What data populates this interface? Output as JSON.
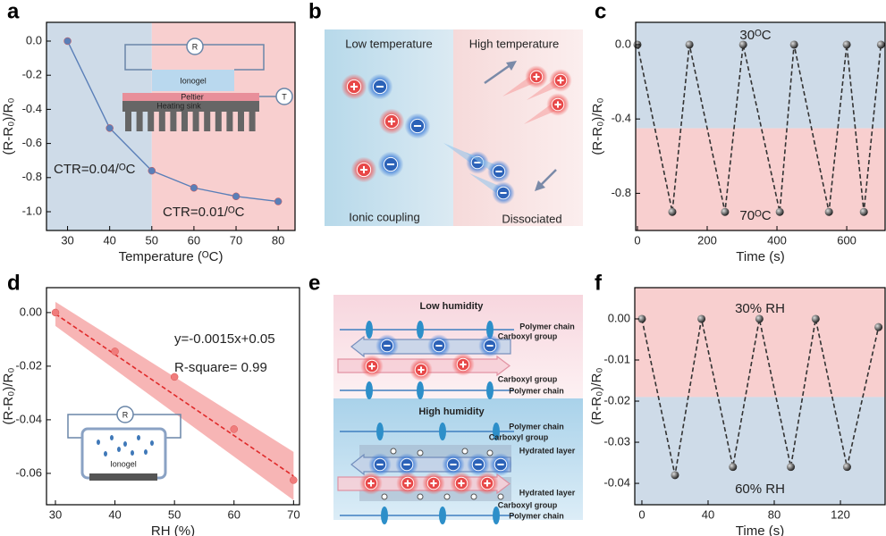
{
  "panel_labels": [
    "a",
    "b",
    "c",
    "d",
    "e",
    "f"
  ],
  "chart_data": [
    {
      "type": "line",
      "xlabel": "Temperature (ᴼC)",
      "ylabel": "(R-R₀)/R₀",
      "xlim": [
        25,
        84
      ],
      "ylim": [
        -1.11,
        0.11
      ],
      "xticks": [
        30,
        40,
        50,
        60,
        70,
        80
      ],
      "yticks": [
        {
          "value": 0,
          "label": "0.0"
        },
        -0.2,
        -0.4,
        -0.6,
        -0.8,
        {
          "value": -1,
          "label": "-1.0"
        }
      ],
      "regions": {
        "axis": "x",
        "split": 50,
        "colors": [
          "#cedbe8",
          "#f8cfcf"
        ]
      },
      "series": [
        {
          "color": "#5a7fb8",
          "line": "solid",
          "marker": "dot",
          "x": [
            30,
            40,
            50,
            60,
            70,
            80
          ],
          "values": [
            0,
            -0.51,
            -0.76,
            -0.86,
            -0.91,
            -0.94
          ]
        }
      ],
      "annotations": [
        "CTR=0.04/ᴼC",
        "CTR=0.01/ᴼC"
      ],
      "inset_labels": [
        "R",
        "Ionogel",
        "Peltier",
        "Heating sink",
        "T"
      ]
    },
    {
      "type": "line",
      "xlabel": "Time (s)",
      "ylabel": "(R-R₀)/R₀",
      "xlim": [
        -5,
        710
      ],
      "ylim": [
        -1.0,
        0.12
      ],
      "xticks": [
        0,
        200,
        400,
        600
      ],
      "yticks": [
        {
          "value": 0,
          "label": "0.0"
        },
        -0.4,
        -0.8
      ],
      "regions": {
        "axis": "y",
        "split": -0.45,
        "colors": [
          "#cedbe8",
          "#f8cfcf"
        ]
      },
      "series": [
        {
          "color": "#333333",
          "line": "dashed",
          "marker": "sphere",
          "x": [
            0,
            100,
            149,
            251,
            303,
            408,
            449,
            549,
            600,
            649,
            698
          ],
          "values": [
            0,
            -0.9,
            0,
            -0.9,
            0,
            -0.9,
            0,
            -0.9,
            0,
            -0.9,
            0
          ]
        }
      ],
      "annotations": [
        "30ᴼC",
        "70ᴼC"
      ],
      "annotation_colors": [
        "#2b5c9c",
        "#c42424"
      ]
    },
    {
      "type": "scatter",
      "xlabel": "RH (%)",
      "ylabel": "(R-R₀)/R₀",
      "xlim": [
        28.5,
        71
      ],
      "ylim": [
        -0.0717,
        0.0093
      ],
      "xticks": [
        30,
        40,
        50,
        60,
        70
      ],
      "yticks": [
        {
          "value": 0,
          "label": "0.00"
        },
        {
          "value": -0.02,
          "label": "-0.02"
        },
        {
          "value": -0.04,
          "label": "-0.04"
        },
        {
          "value": -0.06,
          "label": "-0.06"
        }
      ],
      "band": {
        "color": "#f5a3a3",
        "x": [
          30,
          70
        ],
        "upper": [
          0.004,
          -0.052
        ],
        "lower": [
          -0.005,
          -0.07
        ]
      },
      "series": [
        {
          "color": "#e02a2a",
          "line": "dashed",
          "x": [
            30,
            70
          ],
          "values": [
            -0.0005,
            -0.061
          ]
        },
        {
          "color": "#f07c7c",
          "marker": "dot",
          "x": [
            30,
            40,
            50,
            60,
            70
          ],
          "values": [
            0,
            -0.0145,
            -0.024,
            -0.0435,
            -0.0625
          ]
        }
      ],
      "annotations": [
        "y=-0.0015x+0.05",
        "R-square= 0.99"
      ],
      "inset_labels": [
        "R",
        "Ionogel"
      ]
    },
    {
      "type": "line",
      "xlabel": "Time (s)",
      "ylabel": "(R-R₀)/R₀",
      "xlim": [
        -4.3,
        147
      ],
      "ylim": [
        -0.0452,
        0.0076
      ],
      "xticks": [
        0,
        40,
        80,
        120
      ],
      "yticks": [
        {
          "value": 0,
          "label": "0.00"
        },
        {
          "value": -0.01,
          "label": "-0.01"
        },
        {
          "value": -0.02,
          "label": "-0.02"
        },
        {
          "value": -0.03,
          "label": "-0.03"
        },
        {
          "value": -0.04,
          "label": "-0.04"
        }
      ],
      "regions": {
        "axis": "y",
        "split": -0.019,
        "colors": [
          "#f8cfcf",
          "#cedbe8"
        ]
      },
      "series": [
        {
          "color": "#333333",
          "line": "dashed",
          "marker": "sphere",
          "x": [
            0,
            20,
            36,
            55,
            71,
            90,
            105,
            124,
            143
          ],
          "values": [
            0,
            -0.038,
            0,
            -0.036,
            0,
            -0.036,
            0,
            -0.036,
            -0.002
          ]
        }
      ],
      "annotations": [
        "30% RH",
        "60% RH"
      ],
      "annotation_colors": [
        "#c42424",
        "#2b6cb0"
      ]
    }
  ],
  "diagrams": {
    "b": {
      "labels": [
        "Low temperature",
        "High temperature",
        "Ionic coupling",
        "Dissociated"
      ]
    },
    "e": {
      "labels": [
        "Low humidity",
        "Polymer chain",
        "Carboxyl group",
        "Carboxyl group",
        "Polymer chain",
        "High humidity",
        "Polymer chain",
        "Carboxyl group",
        "Hydrated layer",
        "Hydrated layer",
        "Carboxyl group",
        "Polymer chain"
      ]
    }
  }
}
